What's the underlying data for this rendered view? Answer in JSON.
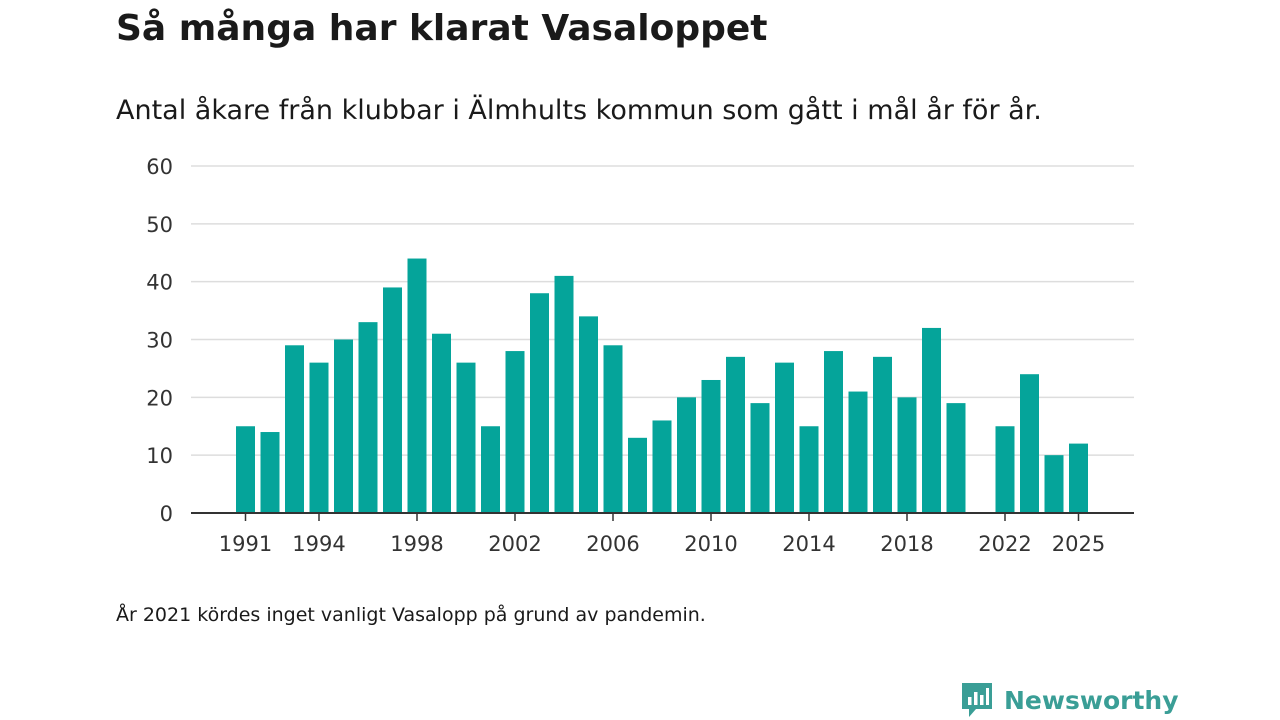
{
  "title": "Så många har klarat Vasaloppet",
  "subtitle": "Antal åkare från klubbar i Älmhults kommun som gått i mål år för år.",
  "note": "År 2021 kördes inget vanligt Vasalopp på grund av pandemin.",
  "brand": {
    "name": "Newsworthy",
    "icon": "newsworthy-logo-icon"
  },
  "colors": {
    "bar": "#05a49a",
    "grid": "#dddddd",
    "axis": "#333333",
    "brand": "#3a9e96"
  },
  "chart_data": {
    "type": "bar",
    "title": "Så många har klarat Vasaloppet",
    "xlabel": "",
    "ylabel": "",
    "ylim": [
      0,
      60
    ],
    "yticks": [
      0,
      10,
      20,
      30,
      40,
      50,
      60
    ],
    "grid": true,
    "categories": [
      1991,
      1992,
      1993,
      1994,
      1995,
      1996,
      1997,
      1998,
      1999,
      2000,
      2001,
      2002,
      2003,
      2004,
      2005,
      2006,
      2007,
      2008,
      2009,
      2010,
      2011,
      2012,
      2013,
      2014,
      2015,
      2016,
      2017,
      2018,
      2019,
      2020,
      2021,
      2022,
      2023,
      2024,
      2025
    ],
    "values": [
      15,
      14,
      29,
      26,
      30,
      33,
      39,
      44,
      31,
      26,
      15,
      28,
      38,
      41,
      34,
      29,
      13,
      16,
      20,
      23,
      27,
      19,
      26,
      15,
      28,
      21,
      27,
      20,
      32,
      19,
      null,
      15,
      24,
      10,
      12
    ],
    "xtick_labels": [
      "1991",
      "1994",
      "1998",
      "2002",
      "2006",
      "2010",
      "2014",
      "2018",
      "2022",
      "2025"
    ]
  }
}
